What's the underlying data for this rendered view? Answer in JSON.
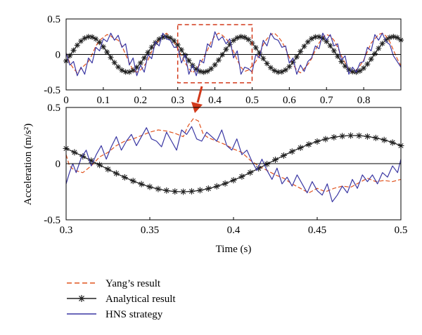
{
  "chart_data": [
    {
      "id": "top",
      "type": "line",
      "xlim": [
        0,
        0.9
      ],
      "ylim": [
        -0.5,
        0.5
      ],
      "xticks": [
        "0",
        "0.1",
        "0.2",
        "0.3",
        "0.4",
        "0.5",
        "0.6",
        "0.7",
        "0.8"
      ],
      "yticks": [
        "-0.5",
        "0",
        "0.5"
      ],
      "xtick_values": [
        0,
        0.1,
        0.2,
        0.3,
        0.4,
        0.5,
        0.6,
        0.7,
        0.8
      ],
      "ytick_values": [
        -0.5,
        0,
        0.5
      ],
      "zoom_box": {
        "x": [
          0.3,
          0.5
        ],
        "y": [
          -0.4,
          0.42
        ]
      },
      "series": [
        {
          "name": "Yang's result",
          "kind": "dashed",
          "color": "#e0531f",
          "x": [
            0,
            0.01,
            0.02,
            0.03,
            0.04,
            0.05,
            0.06,
            0.07,
            0.08,
            0.09,
            0.1,
            0.11,
            0.12,
            0.13,
            0.14,
            0.15,
            0.16,
            0.17,
            0.18,
            0.19,
            0.2,
            0.21,
            0.22,
            0.23,
            0.24,
            0.25,
            0.26,
            0.27,
            0.28,
            0.29,
            0.3,
            0.31,
            0.32,
            0.33,
            0.34,
            0.35,
            0.36,
            0.37,
            0.38,
            0.39,
            0.4,
            0.41,
            0.42,
            0.43,
            0.44,
            0.45,
            0.46,
            0.47,
            0.48,
            0.49,
            0.5,
            0.51,
            0.52,
            0.53,
            0.54,
            0.55,
            0.56,
            0.57,
            0.58,
            0.59,
            0.6,
            0.61,
            0.62,
            0.63,
            0.64,
            0.65,
            0.66,
            0.67,
            0.68,
            0.69,
            0.7,
            0.71,
            0.72,
            0.73,
            0.74,
            0.75,
            0.76,
            0.77,
            0.78,
            0.79,
            0.8,
            0.81,
            0.82,
            0.83,
            0.84,
            0.85,
            0.86,
            0.87,
            0.88,
            0.89,
            0.9
          ],
          "y": [
            0.02,
            -0.12,
            -0.2,
            -0.26,
            -0.2,
            -0.15,
            -0.1,
            0.0,
            0.12,
            0.2,
            0.24,
            0.28,
            0.26,
            0.22,
            0.2,
            0.12,
            0.0,
            -0.12,
            -0.22,
            -0.25,
            -0.22,
            -0.16,
            -0.08,
            0.04,
            0.14,
            0.2,
            0.26,
            0.3,
            0.24,
            0.18,
            0.08,
            -0.02,
            -0.12,
            -0.2,
            -0.26,
            -0.2,
            -0.14,
            -0.04,
            0.06,
            0.18,
            0.26,
            0.3,
            0.27,
            0.22,
            0.16,
            0.04,
            -0.08,
            -0.18,
            -0.24,
            -0.22,
            -0.16,
            -0.1,
            0.0,
            0.14,
            0.22,
            0.28,
            0.3,
            0.25,
            0.18,
            0.08,
            -0.04,
            -0.14,
            -0.22,
            -0.26,
            -0.2,
            -0.14,
            -0.06,
            0.06,
            0.16,
            0.24,
            0.28,
            0.26,
            0.2,
            0.1,
            -0.02,
            -0.12,
            -0.22,
            -0.26,
            -0.22,
            -0.16,
            -0.08,
            0.04,
            0.16,
            0.22,
            0.28,
            0.3,
            0.26,
            0.18,
            0.06,
            -0.06,
            -0.16
          ]
        },
        {
          "name": "Analytical result",
          "kind": "star",
          "color": "#222222",
          "amp": 0.25,
          "freq": 4.9,
          "phase": -0.38
        },
        {
          "name": "HNS strategy",
          "kind": "solid",
          "color": "#3a37a3",
          "x": [
            0,
            0.01,
            0.02,
            0.03,
            0.04,
            0.05,
            0.06,
            0.07,
            0.08,
            0.09,
            0.1,
            0.11,
            0.12,
            0.13,
            0.14,
            0.15,
            0.16,
            0.17,
            0.18,
            0.19,
            0.2,
            0.21,
            0.22,
            0.23,
            0.24,
            0.25,
            0.26,
            0.27,
            0.28,
            0.29,
            0.3,
            0.31,
            0.32,
            0.33,
            0.34,
            0.35,
            0.36,
            0.37,
            0.38,
            0.39,
            0.4,
            0.41,
            0.42,
            0.43,
            0.44,
            0.45,
            0.46,
            0.47,
            0.48,
            0.49,
            0.5,
            0.51,
            0.52,
            0.53,
            0.54,
            0.55,
            0.56,
            0.57,
            0.58,
            0.59,
            0.6,
            0.61,
            0.62,
            0.63,
            0.64,
            0.65,
            0.66,
            0.67,
            0.68,
            0.69,
            0.7,
            0.71,
            0.72,
            0.73,
            0.74,
            0.75,
            0.76,
            0.77,
            0.78,
            0.79,
            0.8,
            0.81,
            0.82,
            0.83,
            0.84,
            0.85,
            0.86,
            0.87,
            0.88,
            0.89,
            0.9
          ],
          "y": [
            0.02,
            -0.15,
            -0.1,
            -0.3,
            -0.18,
            -0.28,
            -0.05,
            -0.12,
            0.1,
            0.05,
            0.22,
            0.18,
            0.3,
            0.2,
            0.27,
            0.1,
            0.15,
            -0.15,
            -0.05,
            -0.3,
            -0.15,
            -0.25,
            0.0,
            -0.06,
            0.18,
            0.12,
            0.3,
            0.22,
            0.2,
            0.1,
            0.1,
            -0.12,
            0.0,
            -0.28,
            -0.15,
            -0.3,
            -0.08,
            -0.12,
            0.15,
            0.1,
            0.32,
            0.2,
            0.25,
            0.15,
            0.22,
            -0.05,
            0.05,
            -0.28,
            -0.18,
            -0.2,
            -0.25,
            0.0,
            -0.05,
            0.2,
            0.12,
            0.3,
            0.22,
            0.2,
            0.1,
            0.12,
            -0.12,
            -0.05,
            -0.28,
            -0.15,
            -0.24,
            -0.1,
            -0.05,
            0.12,
            0.08,
            0.3,
            0.2,
            0.28,
            0.12,
            0.15,
            -0.08,
            -0.02,
            -0.28,
            -0.18,
            -0.25,
            -0.12,
            -0.1,
            0.1,
            0.05,
            0.28,
            0.2,
            0.3,
            0.18,
            0.14,
            -0.02,
            -0.1,
            -0.18
          ]
        }
      ]
    },
    {
      "id": "bottom",
      "type": "line",
      "xlim": [
        0.3,
        0.5
      ],
      "ylim": [
        -0.5,
        0.5
      ],
      "xticks": [
        "0.3",
        "0.35",
        "0.4",
        "0.45",
        "0.5"
      ],
      "yticks": [
        "-0.5",
        "0",
        "0.5"
      ],
      "xtick_values": [
        0.3,
        0.35,
        0.4,
        0.45,
        0.5
      ],
      "ytick_values": [
        -0.5,
        0,
        0.5
      ],
      "xlabel": "Time (s)",
      "series": [
        {
          "name": "Yang's result",
          "kind": "dashed",
          "color": "#e0531f",
          "x": [
            0.3,
            0.302,
            0.305,
            0.31,
            0.315,
            0.32,
            0.325,
            0.33,
            0.335,
            0.34,
            0.345,
            0.35,
            0.355,
            0.36,
            0.365,
            0.37,
            0.373,
            0.376,
            0.379,
            0.382,
            0.385,
            0.39,
            0.395,
            0.4,
            0.405,
            0.41,
            0.415,
            0.42,
            0.425,
            0.43,
            0.435,
            0.44,
            0.445,
            0.45,
            0.455,
            0.46,
            0.465,
            0.47,
            0.475,
            0.48,
            0.485,
            0.49,
            0.495,
            0.5
          ],
          "y": [
            0.08,
            -0.02,
            -0.06,
            -0.08,
            -0.02,
            0.06,
            0.1,
            0.16,
            0.2,
            0.22,
            0.25,
            0.28,
            0.3,
            0.29,
            0.27,
            0.24,
            0.34,
            0.4,
            0.38,
            0.26,
            0.23,
            0.2,
            0.17,
            0.13,
            0.1,
            0.03,
            -0.02,
            -0.06,
            -0.1,
            -0.13,
            -0.18,
            -0.22,
            -0.26,
            -0.22,
            -0.25,
            -0.22,
            -0.2,
            -0.21,
            -0.17,
            -0.13,
            -0.16,
            -0.15,
            -0.16,
            -0.14
          ]
        },
        {
          "name": "Analytical result",
          "kind": "star",
          "color": "#222222",
          "amp": 0.25,
          "freq": 4.9,
          "phase": -0.38
        },
        {
          "name": "HNS strategy",
          "kind": "solid",
          "color": "#3a37a3",
          "x": [
            0.3,
            0.302,
            0.304,
            0.306,
            0.309,
            0.312,
            0.315,
            0.318,
            0.321,
            0.324,
            0.327,
            0.33,
            0.333,
            0.336,
            0.339,
            0.342,
            0.345,
            0.348,
            0.351,
            0.354,
            0.357,
            0.36,
            0.363,
            0.366,
            0.369,
            0.372,
            0.375,
            0.378,
            0.381,
            0.384,
            0.387,
            0.39,
            0.393,
            0.396,
            0.399,
            0.402,
            0.405,
            0.408,
            0.411,
            0.414,
            0.417,
            0.42,
            0.423,
            0.426,
            0.429,
            0.432,
            0.435,
            0.438,
            0.441,
            0.444,
            0.447,
            0.45,
            0.453,
            0.456,
            0.459,
            0.462,
            0.465,
            0.468,
            0.471,
            0.474,
            0.477,
            0.48,
            0.483,
            0.486,
            0.489,
            0.492,
            0.495,
            0.498,
            0.5
          ],
          "y": [
            -0.18,
            -0.08,
            0.0,
            -0.08,
            0.05,
            0.12,
            -0.02,
            0.08,
            0.16,
            0.04,
            0.15,
            0.24,
            0.12,
            0.2,
            0.26,
            0.16,
            0.24,
            0.32,
            0.22,
            0.2,
            0.15,
            0.28,
            0.2,
            0.12,
            0.3,
            0.26,
            0.33,
            0.22,
            0.2,
            0.28,
            0.24,
            0.2,
            0.3,
            0.16,
            0.12,
            0.22,
            0.08,
            0.12,
            0.02,
            -0.06,
            0.04,
            -0.06,
            -0.14,
            -0.04,
            -0.18,
            -0.12,
            -0.2,
            -0.1,
            -0.18,
            -0.26,
            -0.16,
            -0.24,
            -0.28,
            -0.18,
            -0.34,
            -0.28,
            -0.2,
            -0.26,
            -0.14,
            -0.22,
            -0.1,
            -0.16,
            -0.1,
            -0.18,
            -0.08,
            -0.12,
            -0.02,
            -0.08,
            0.04
          ]
        }
      ]
    }
  ],
  "ylabel": "Acceleration (m/s²)",
  "legend": [
    {
      "label": "Yang’s result",
      "kind": "dashed",
      "color": "#e0531f"
    },
    {
      "label": "Analytical result",
      "kind": "star",
      "color": "#222222"
    },
    {
      "label": "HNS strategy",
      "kind": "solid",
      "color": "#3a37a3"
    }
  ],
  "zoom_arrow_color": "#d2391a"
}
